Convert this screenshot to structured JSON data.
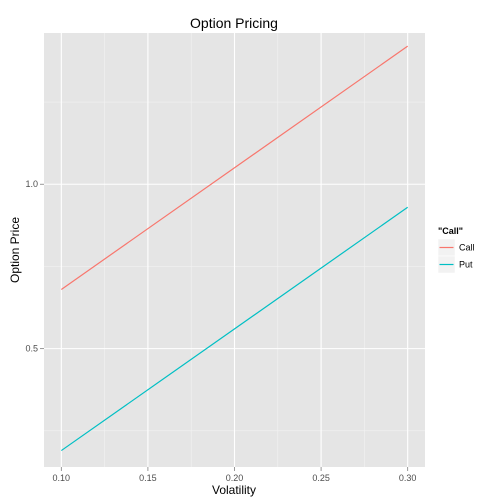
{
  "chart_data": {
    "type": "line",
    "title": "Option Pricing",
    "xlabel": "Volatility",
    "ylabel": "Option Price",
    "xlim": [
      0.09,
      0.31
    ],
    "ylim": [
      0.14,
      1.46
    ],
    "x_ticks": [
      0.1,
      0.15,
      0.2,
      0.25,
      0.3
    ],
    "x_tick_labels": [
      "0.10",
      "0.15",
      "0.20",
      "0.25",
      "0.30"
    ],
    "y_ticks": [
      0.5,
      1.0
    ],
    "y_tick_labels": [
      "0.5",
      "1.0"
    ],
    "grid": true,
    "legend": {
      "title": "\"Call\"",
      "placement": "right",
      "entries": [
        "Call",
        "Put"
      ]
    },
    "series": [
      {
        "name": "Call",
        "color": "#F8766D",
        "x": [
          0.1,
          0.3
        ],
        "y": [
          0.68,
          1.42
        ]
      },
      {
        "name": "Put",
        "color": "#00BFC4",
        "x": [
          0.1,
          0.3
        ],
        "y": [
          0.19,
          0.93
        ]
      }
    ]
  }
}
